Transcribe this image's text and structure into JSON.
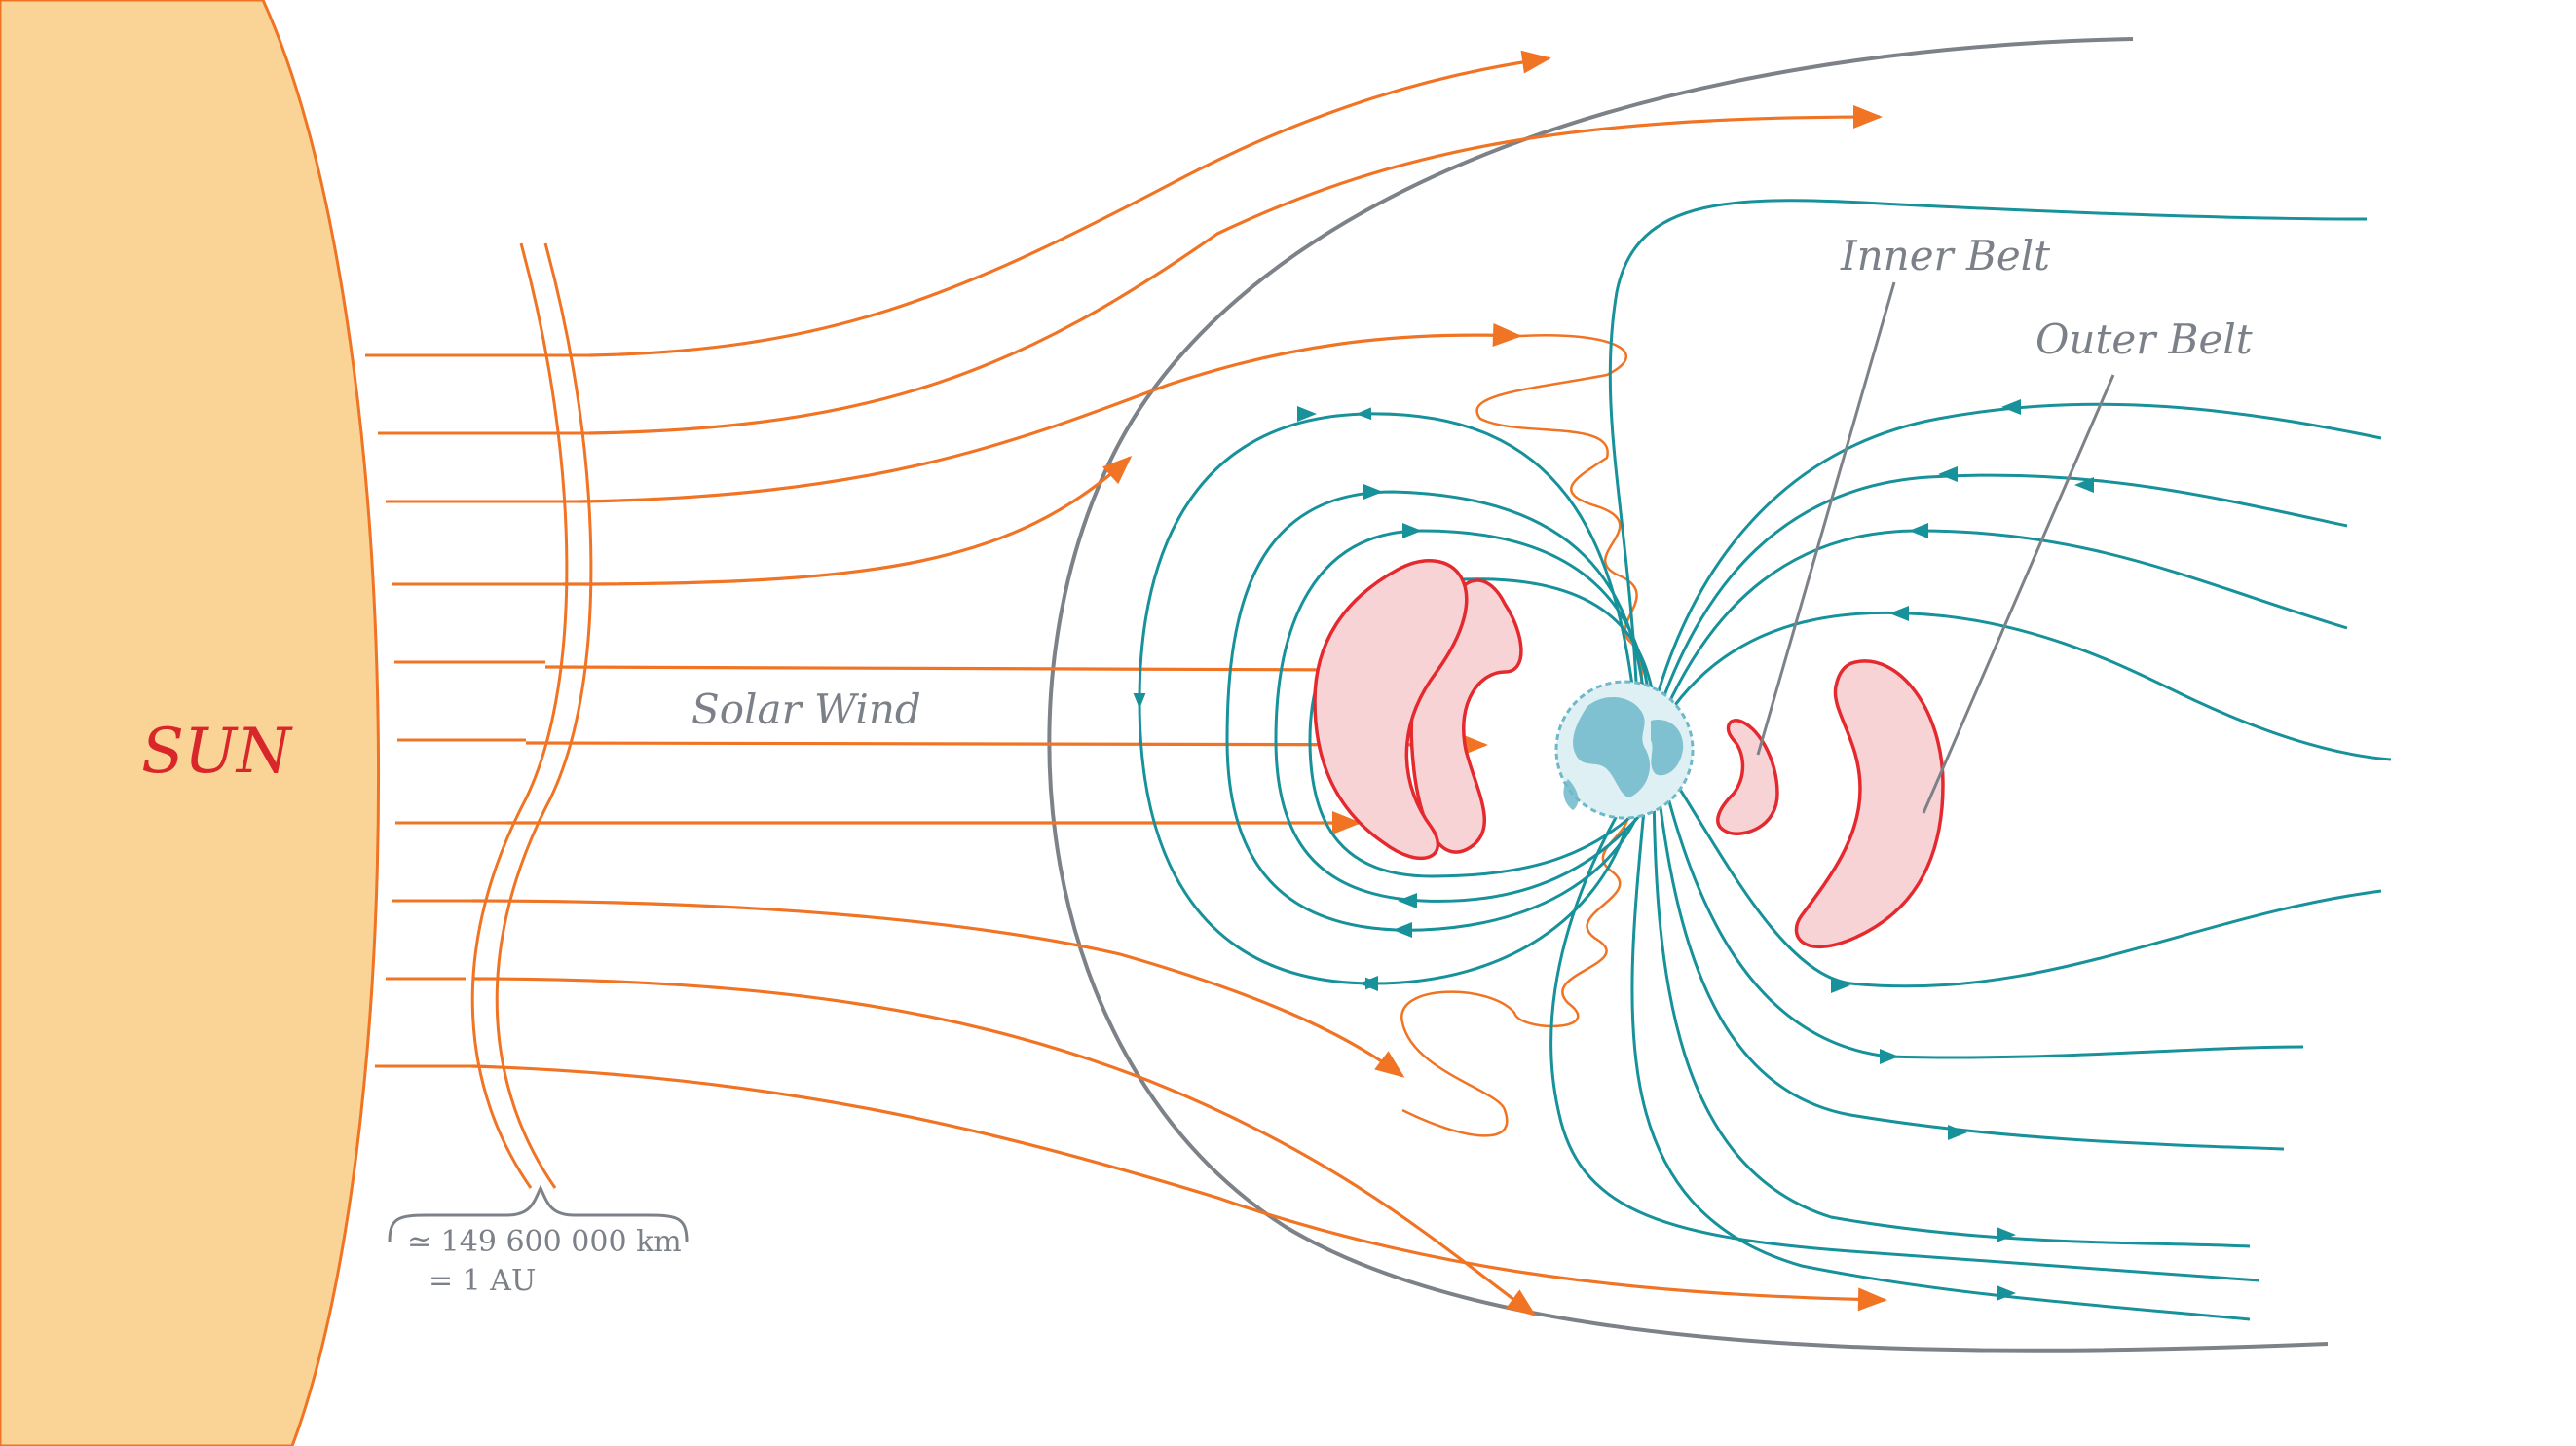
{
  "labels": {
    "sun": "SUN",
    "solar_wind": "Solar Wind",
    "inner_belt": "Inner Belt",
    "outer_belt": "Outer Belt",
    "distance_line1": "≃ 149 600 000 km",
    "distance_line2": "=  1 AU"
  },
  "colors": {
    "sun_fill": "#f9d496",
    "solar_wind": "#f07424",
    "field_lines": "#17919a",
    "magnetopause": "#7d8289",
    "belts_fill": "#f8d3d6",
    "belts_stroke": "#e52a2f",
    "sun_label": "#d9262a",
    "gray_text": "#7c8088",
    "earth_ocean": "#dff0f4",
    "earth_land": "#6fb8c9"
  },
  "icons": {
    "earth": "earth-globe-icon",
    "brace": "curly-brace-icon"
  }
}
